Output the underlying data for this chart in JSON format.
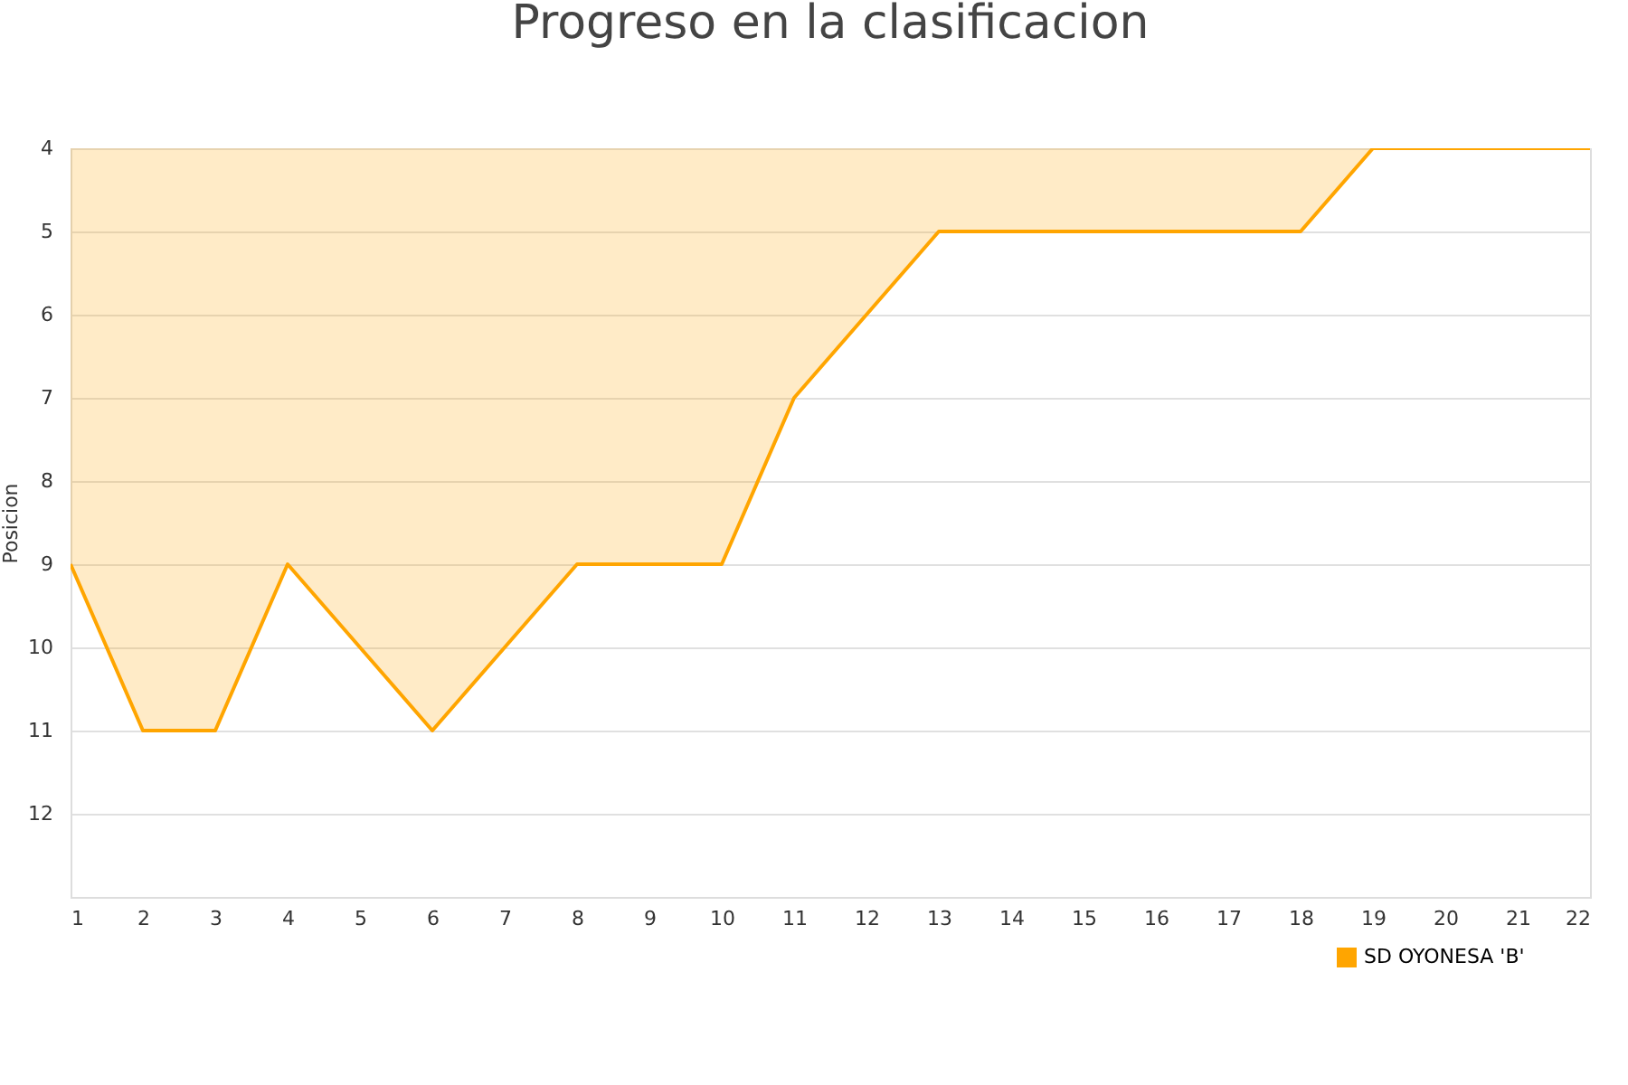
{
  "chart_data": {
    "type": "area",
    "title": "Progreso en la clasificacion",
    "ylabel": "Posicion",
    "x": [
      1,
      2,
      3,
      4,
      5,
      6,
      7,
      8,
      9,
      10,
      11,
      12,
      13,
      14,
      15,
      16,
      17,
      18,
      19,
      20,
      21,
      22
    ],
    "series": [
      {
        "name": "SD OYONESA 'B'",
        "color": "#ffa500",
        "values": [
          9,
          11,
          11,
          9,
          10,
          11,
          10,
          9,
          9,
          9,
          7,
          6,
          5,
          5,
          5,
          5,
          5,
          5,
          4,
          4,
          4,
          4
        ]
      }
    ],
    "xlim": [
      1,
      22
    ],
    "xticks": [
      1,
      2,
      3,
      4,
      5,
      6,
      7,
      8,
      9,
      10,
      11,
      12,
      13,
      14,
      15,
      16,
      17,
      18,
      19,
      20,
      21,
      22
    ],
    "ylim": [
      13,
      4
    ],
    "yticks": [
      4,
      5,
      6,
      7,
      8,
      9,
      10,
      11,
      12
    ],
    "grid": "y",
    "legend": "bottom right"
  }
}
